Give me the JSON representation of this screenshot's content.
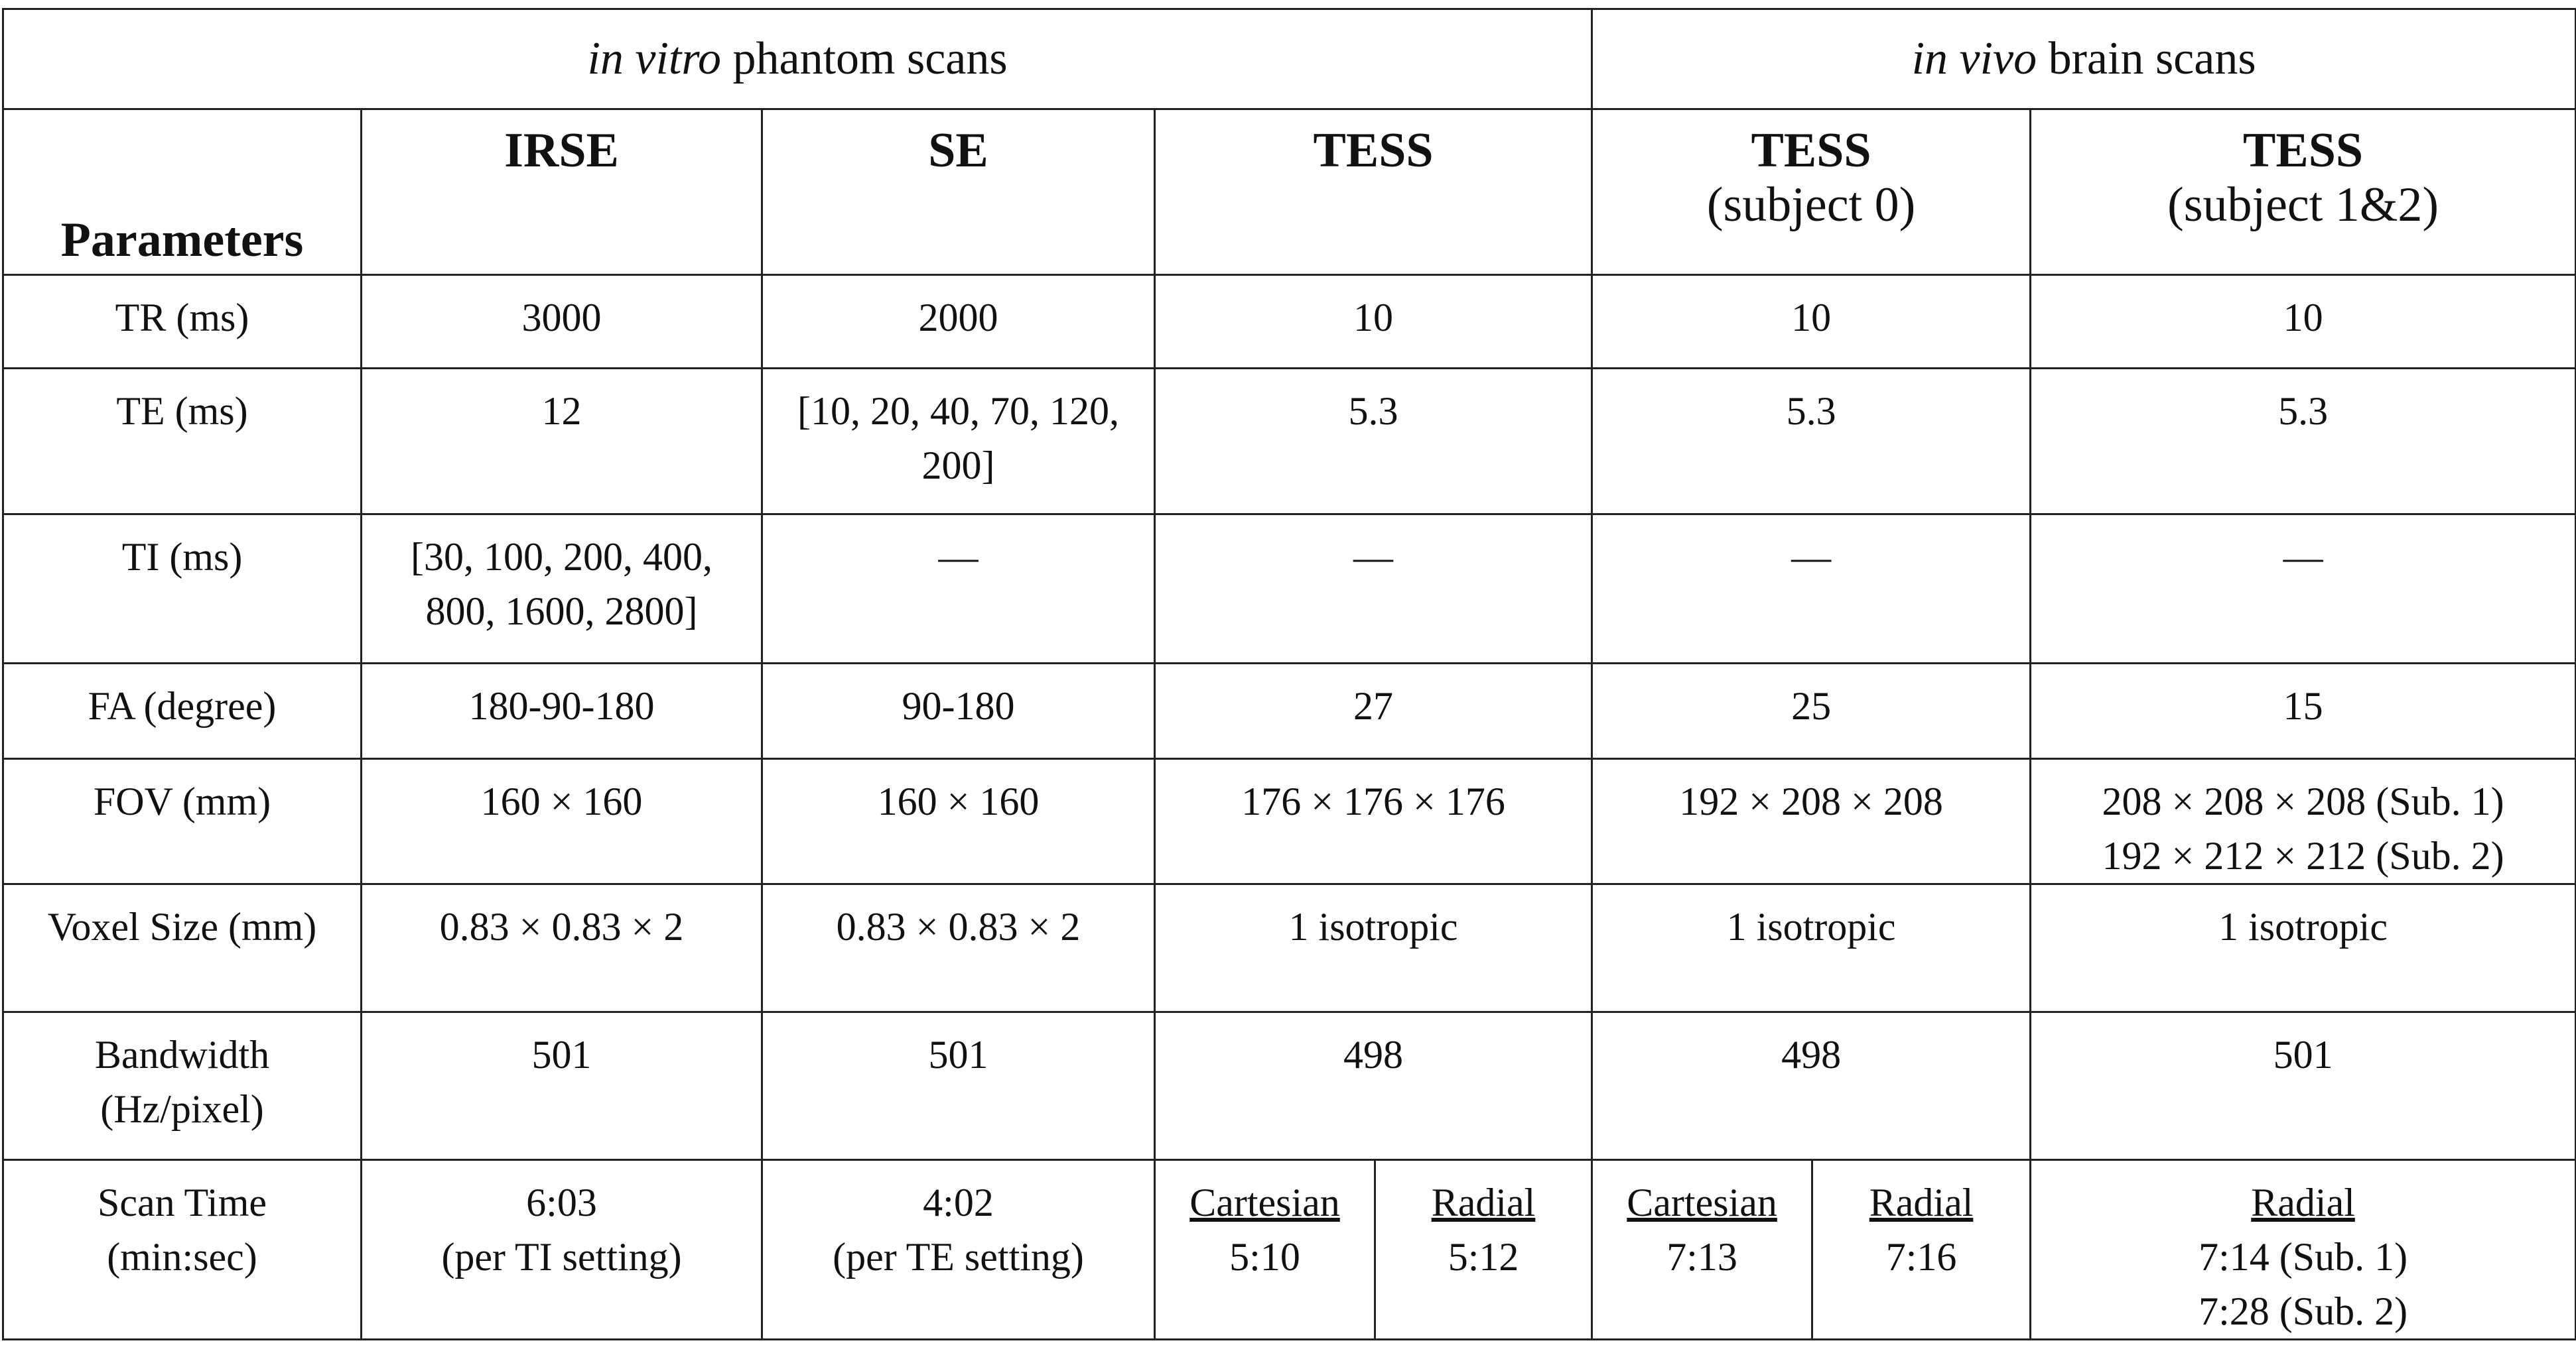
{
  "table": {
    "groups": [
      {
        "prefix": "in vitro",
        "text": "phantom scans"
      },
      {
        "prefix": "in vivo",
        "text": "brain scans"
      }
    ],
    "parameters": "Parameters",
    "columns": [
      {
        "name": "IRSE"
      },
      {
        "name": "SE"
      },
      {
        "name": "TESS"
      },
      {
        "name": "TESS",
        "sub": "(subject 0)"
      },
      {
        "name": "TESS",
        "sub": "(subject 1&2)"
      }
    ],
    "rows": [
      {
        "label": [
          "TR (ms)"
        ],
        "cells": [
          [
            "3000"
          ],
          [
            "2000"
          ],
          [
            "10"
          ],
          [
            "10"
          ],
          [
            "10"
          ]
        ]
      },
      {
        "label": [
          "TE (ms)"
        ],
        "cells": [
          [
            "12"
          ],
          [
            "[10, 20, 40, 70, 120,",
            "200]"
          ],
          [
            "5.3"
          ],
          [
            "5.3"
          ],
          [
            "5.3"
          ]
        ]
      },
      {
        "label": [
          "TI (ms)"
        ],
        "cells": [
          [
            "[30, 100, 200, 400,",
            "800, 1600, 2800]"
          ],
          [
            "—"
          ],
          [
            "—"
          ],
          [
            "—"
          ],
          [
            "—"
          ]
        ]
      },
      {
        "label": [
          "FA (degree)"
        ],
        "cells": [
          [
            "180-90-180"
          ],
          [
            "90-180"
          ],
          [
            "27"
          ],
          [
            "25"
          ],
          [
            "15"
          ]
        ]
      },
      {
        "label": [
          "FOV (mm)"
        ],
        "cells": [
          [
            "160 × 160"
          ],
          [
            "160 × 160"
          ],
          [
            "176 × 176 × 176"
          ],
          [
            "192 × 208 × 208"
          ],
          [
            "208 × 208 × 208 (Sub. 1)",
            "192 × 212 × 212 (Sub. 2)"
          ]
        ]
      },
      {
        "label": [
          "Voxel Size (mm)"
        ],
        "cells": [
          [
            "0.83 × 0.83 × 2"
          ],
          [
            "0.83 × 0.83 × 2"
          ],
          [
            "1 isotropic"
          ],
          [
            "1 isotropic"
          ],
          [
            "1 isotropic"
          ]
        ]
      },
      {
        "label": [
          "Bandwidth",
          "(Hz/pixel)"
        ],
        "cells": [
          [
            "501"
          ],
          [
            "501"
          ],
          [
            "498"
          ],
          [
            "498"
          ],
          [
            "501"
          ]
        ]
      },
      {
        "label": [
          "Scan Time",
          "(min:sec)"
        ],
        "cells": [
          {
            "lines": [
              "6:03",
              "(per TI setting)"
            ]
          },
          {
            "lines": [
              "4:02",
              "(per TE setting)"
            ]
          },
          {
            "head": "Cartesian",
            "lines": [
              "5:10"
            ]
          },
          {
            "head": "Radial",
            "lines": [
              "5:12"
            ]
          },
          {
            "head": "Cartesian",
            "lines": [
              "7:13"
            ]
          },
          {
            "head": "Radial",
            "lines": [
              "7:16"
            ]
          },
          {
            "head": "Radial",
            "lines": [
              "7:14 (Sub. 1)",
              "7:28 (Sub. 2)"
            ]
          }
        ]
      }
    ]
  }
}
